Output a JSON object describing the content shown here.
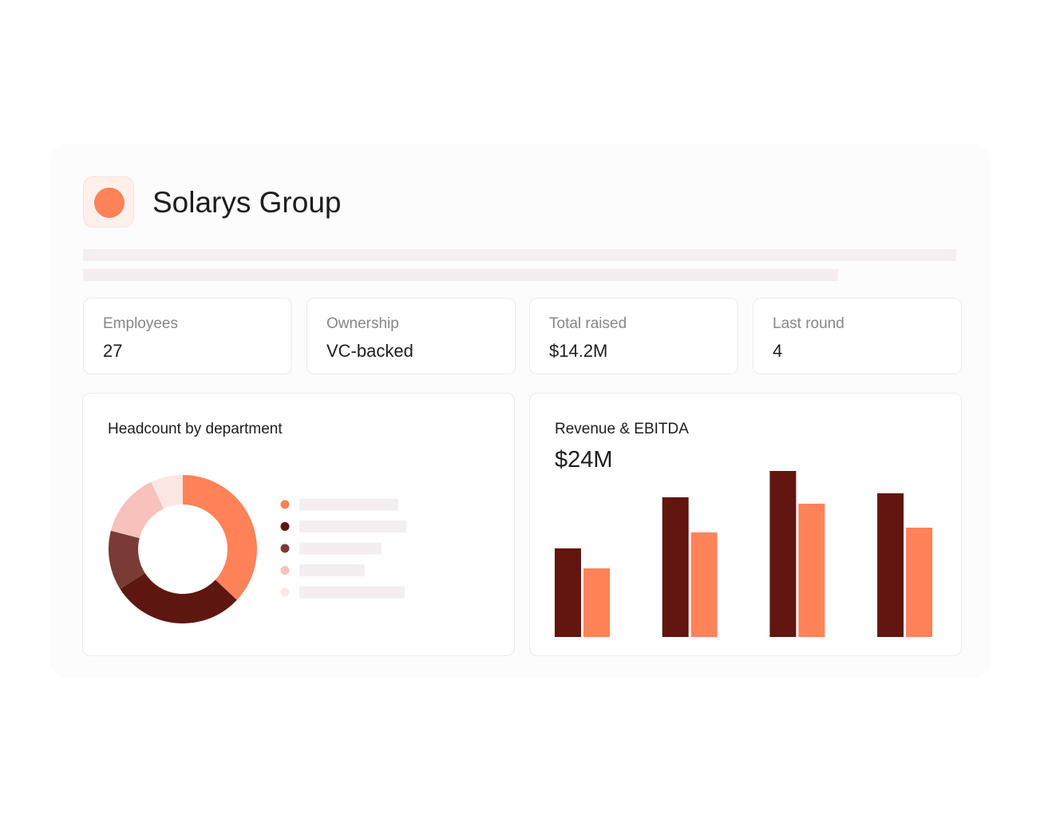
{
  "header": {
    "title": "Solarys Group"
  },
  "stats": [
    {
      "label": "Employees",
      "value": "27"
    },
    {
      "label": "Ownership",
      "value": "VC-backed"
    },
    {
      "label": "Total raised",
      "value": "$14.2M"
    },
    {
      "label": "Last round",
      "value": "4"
    }
  ],
  "chart_data": [
    {
      "type": "donut",
      "title": "Headcount by department",
      "values": [
        37,
        29,
        13,
        14,
        7
      ],
      "colors": [
        "#ff8259",
        "#5e1610",
        "#7a3b36",
        "#f6c2bb",
        "#fde7e4"
      ]
    },
    {
      "type": "bar",
      "title": "Revenue & EBITDA",
      "headline": "$24M",
      "series": [
        {
          "color": "#63150f",
          "values": [
            111,
            175,
            208,
            180
          ]
        },
        {
          "color": "#ff8259",
          "values": [
            86,
            131,
            167,
            137
          ]
        }
      ]
    }
  ]
}
